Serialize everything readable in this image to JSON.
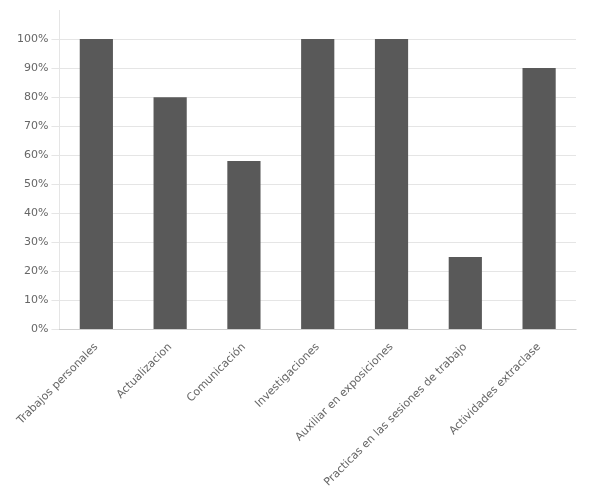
{
  "chart_data": {
    "type": "bar",
    "categories": [
      "Trabajos personales",
      "Actualizacion",
      "Comunicación",
      "Investigaciones",
      "Auxiliar en exposiciones",
      "Practicas en las sesiones de trabajo",
      "Actividades extraclase"
    ],
    "values": [
      100,
      80,
      58,
      100,
      100,
      25,
      90
    ],
    "color": "#595959",
    "ylim": [
      0,
      110
    ],
    "yticks": [
      {
        "value": 0,
        "label": "0%"
      },
      {
        "value": 10,
        "label": "10%"
      },
      {
        "value": 20,
        "label": "20%"
      },
      {
        "value": 30,
        "label": "30%"
      },
      {
        "value": 40,
        "label": "40%"
      },
      {
        "value": 50,
        "label": "50%"
      },
      {
        "value": 60,
        "label": "60%"
      },
      {
        "value": 70,
        "label": "70%"
      },
      {
        "value": 80,
        "label": "80%"
      },
      {
        "value": 90,
        "label": "90%"
      },
      {
        "value": 100,
        "label": "100%"
      }
    ],
    "grid": true
  }
}
